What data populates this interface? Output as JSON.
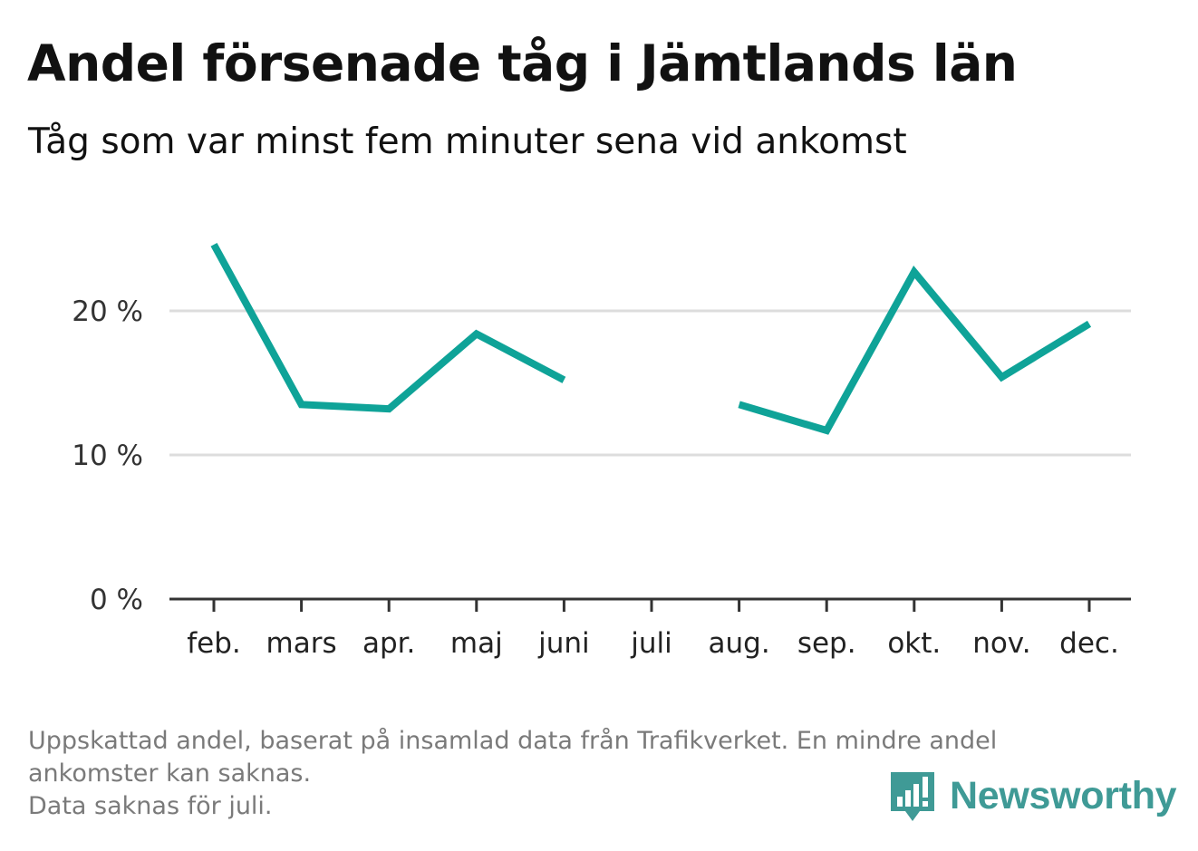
{
  "title": "Andel försenade tåg i Jämtlands län",
  "subtitle": "Tåg som var minst fem minuter sena vid ankomst",
  "footnote": {
    "line1": "Uppskattad andel, baserat på insamlad data från Trafikverket. En mindre andel",
    "line2": "ankomster kan saknas.",
    "line3": "Data saknas för juli."
  },
  "brand": {
    "name": "Newsworthy",
    "color": "#3f9a96"
  },
  "colors": {
    "line": "#0fa398",
    "grid": "#dddddd",
    "axis": "#333333"
  },
  "chart_data": {
    "type": "line",
    "categories": [
      "feb.",
      "mars",
      "apr.",
      "maj",
      "juni",
      "juli",
      "aug.",
      "sep.",
      "okt.",
      "nov.",
      "dec."
    ],
    "series": [
      {
        "values": [
          24.6,
          13.5,
          13.2,
          18.4,
          15.2,
          null,
          13.5,
          11.7,
          22.7,
          15.4,
          19.1
        ]
      }
    ],
    "y_ticks": [
      {
        "value": 0,
        "label": "0 %"
      },
      {
        "value": 10,
        "label": "10 %"
      },
      {
        "value": 20,
        "label": "20 %"
      }
    ],
    "ylim": [
      0,
      25
    ],
    "grid": true,
    "unit": "%"
  }
}
